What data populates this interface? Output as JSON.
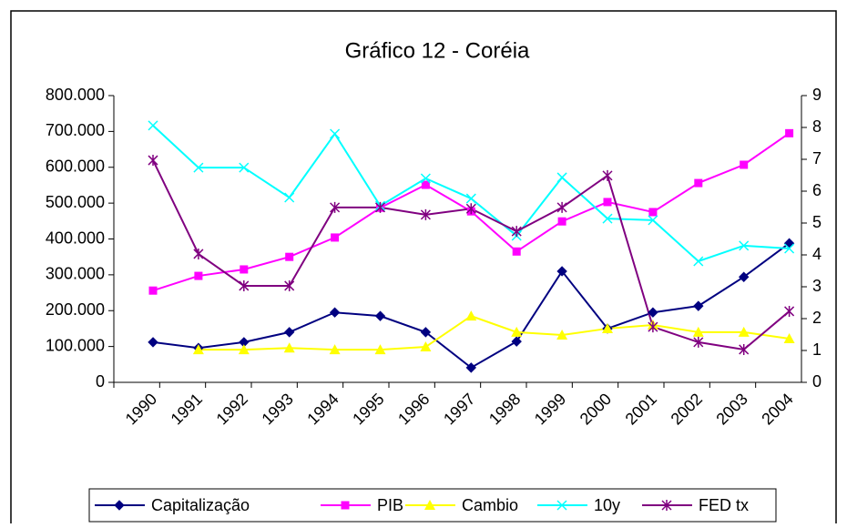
{
  "chart_data": {
    "type": "line",
    "title": "Gráfico 12 - Coréia",
    "categories": [
      "1990",
      "1991",
      "1992",
      "1993",
      "1994",
      "1995",
      "1996",
      "1997",
      "1998",
      "1999",
      "2000",
      "2001",
      "2002",
      "2003",
      "2004"
    ],
    "ylim": [
      0,
      800000
    ],
    "yticks": [
      0,
      {
        "value": 100000,
        "label": "100.000"
      },
      {
        "value": 200000,
        "label": "200.000"
      },
      {
        "value": 300000,
        "label": "300.000"
      },
      {
        "value": 400000,
        "label": "400.000"
      },
      {
        "value": 500000,
        "label": "500.000"
      },
      {
        "value": 600000,
        "label": "600.000"
      },
      {
        "value": 700000,
        "label": "700.000"
      },
      {
        "value": 800000,
        "label": "800.000"
      }
    ],
    "y2lim": [
      0,
      9
    ],
    "y2ticks": [
      0,
      1,
      2,
      3,
      4,
      5,
      6,
      7,
      8,
      9
    ],
    "grid": false,
    "legend": "bottom",
    "series": [
      {
        "name": "Capitalização",
        "color": "#000080",
        "marker": "diamond",
        "values": [
          112000,
          96000,
          112000,
          140000,
          195000,
          185000,
          140000,
          41000,
          114000,
          310000,
          150000,
          195000,
          213000,
          294000,
          388000
        ]
      },
      {
        "name": "PIB",
        "color": "#ff00ff",
        "marker": "square",
        "values": [
          256000,
          297000,
          315000,
          350000,
          404000,
          487000,
          551000,
          477000,
          365000,
          449000,
          503000,
          475000,
          556000,
          607000,
          695000
        ]
      },
      {
        "name": "Cambio",
        "color": "#ffff00",
        "marker": "triangle",
        "values": [
          null,
          91000,
          91000,
          96000,
          91000,
          91000,
          99000,
          185000,
          140000,
          132000,
          150000,
          160000,
          140000,
          140000,
          122000
        ]
      },
      {
        "name": "10y",
        "color": "#00ffff",
        "marker": "x",
        "axis": "y2",
        "values": [
          8.06,
          6.74,
          6.74,
          5.8,
          7.8,
          5.54,
          6.4,
          5.77,
          4.6,
          6.43,
          5.14,
          5.09,
          3.8,
          4.29,
          4.2
        ]
      },
      {
        "name": "FED tx",
        "color": "#800080",
        "marker": "star",
        "axis": "y2",
        "values": [
          6.97,
          4.03,
          3.03,
          3.03,
          5.49,
          5.49,
          5.26,
          5.45,
          4.74,
          5.49,
          6.49,
          1.74,
          1.26,
          1.03,
          2.23
        ]
      }
    ]
  }
}
